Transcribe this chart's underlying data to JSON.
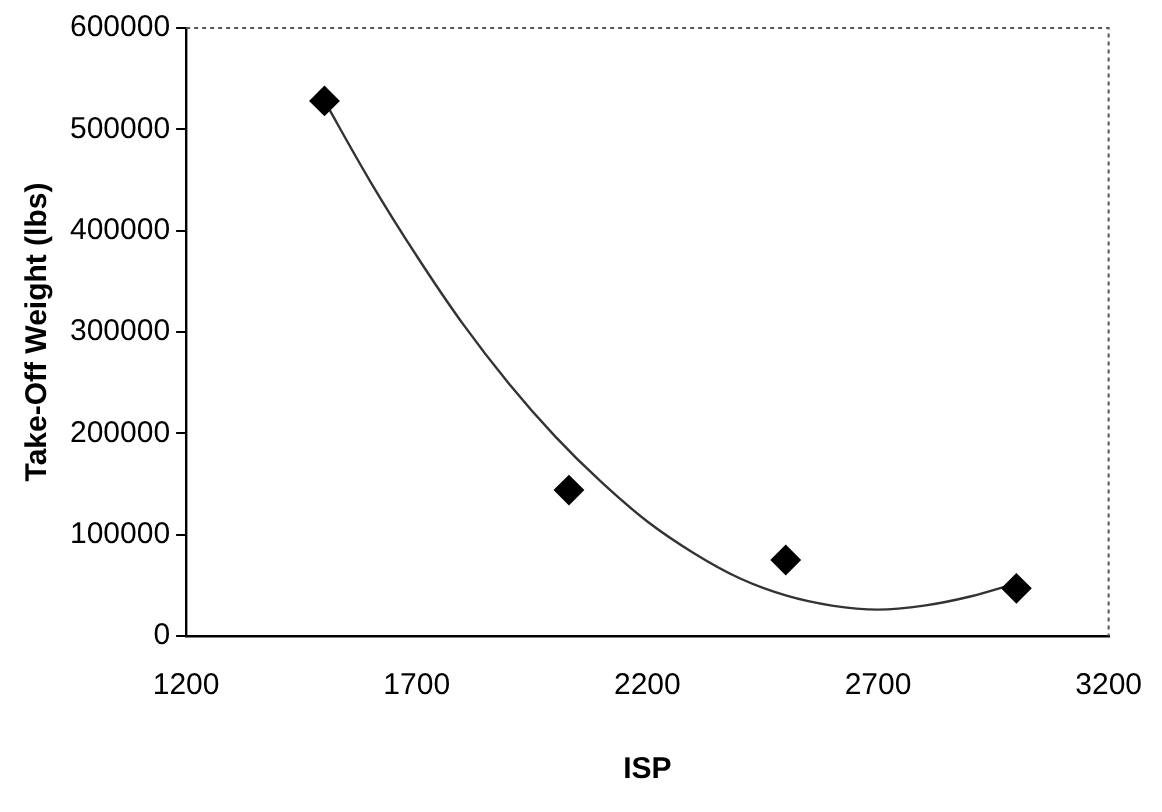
{
  "chart_data": {
    "type": "scatter",
    "xlabel": "ISP",
    "ylabel": "Take-Off Weight (lbs)",
    "xlim": [
      1200,
      3200
    ],
    "xticks": [
      1200,
      1700,
      2200,
      2700,
      3200
    ],
    "ylim": [
      0,
      600000
    ],
    "yticks": [
      0,
      100000,
      200000,
      300000,
      400000,
      500000,
      600000
    ],
    "grid": false,
    "legend": false,
    "series": [
      {
        "color": "#000000",
        "marker": "diamond",
        "x": [
          1500,
          2030,
          2500,
          3000
        ],
        "values": [
          528000,
          144000,
          75000,
          47000
        ]
      },
      {
        "type": "line",
        "color": "#333333",
        "marker": "none",
        "x": [
          1500,
          1600,
          1700,
          1800,
          1900,
          2000,
          2100,
          2200,
          2300,
          2400,
          2500,
          2600,
          2700,
          2800,
          2900,
          3000
        ],
        "values": [
          528000,
          448000,
          375000,
          308000,
          249000,
          197000,
          152000,
          113000,
          82000,
          57000,
          40000,
          30000,
          26000,
          30000,
          39000,
          52000
        ]
      }
    ]
  }
}
